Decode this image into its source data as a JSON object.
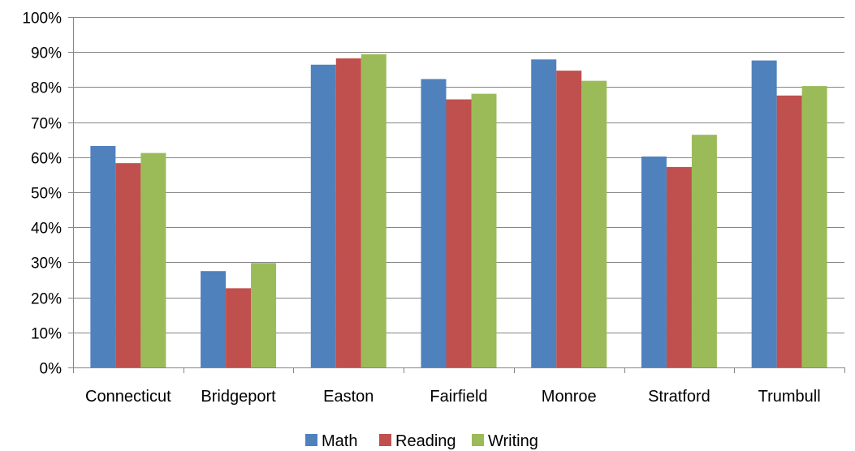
{
  "chart_data": {
    "type": "bar",
    "categories": [
      "Connecticut",
      "Bridgeport",
      "Easton",
      "Fairfield",
      "Monroe",
      "Stratford",
      "Trumbull"
    ],
    "series": [
      {
        "name": "Math",
        "color": "#4f81bd",
        "values": [
          63.2,
          27.5,
          86.4,
          82.3,
          87.9,
          60.2,
          87.6
        ]
      },
      {
        "name": "Reading",
        "color": "#c0504d",
        "values": [
          58.3,
          22.6,
          88.2,
          76.5,
          84.7,
          57.2,
          77.6
        ]
      },
      {
        "name": "Writing",
        "color": "#9bbb59",
        "values": [
          61.2,
          29.8,
          89.4,
          78.1,
          81.8,
          66.4,
          80.3
        ]
      }
    ],
    "ylim": [
      0,
      100
    ],
    "yticks": [
      "0%",
      "10%",
      "20%",
      "30%",
      "40%",
      "50%",
      "60%",
      "70%",
      "80%",
      "90%",
      "100%"
    ],
    "grid": true,
    "legend_position": "bottom"
  }
}
